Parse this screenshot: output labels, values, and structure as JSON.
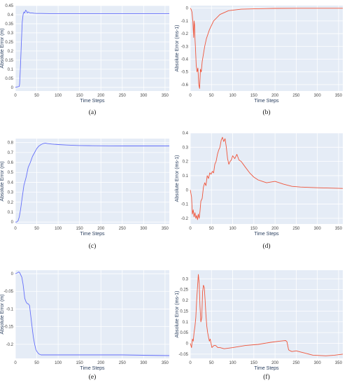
{
  "colors": {
    "plot_bg": "#e5ecf6",
    "grid": "#ffffff",
    "blue": "#636efa",
    "red": "#ef553b",
    "text": "#2a3f5f"
  },
  "chart_data": [
    {
      "type": "line",
      "caption": "(a)",
      "xlabel": "Time Steps",
      "ylabel": "Absolute Error (m)",
      "color": "blue",
      "xlim": [
        0,
        360
      ],
      "ylim": [
        -0.02,
        0.45
      ],
      "xticks": [
        0,
        50,
        100,
        150,
        200,
        250,
        300,
        350
      ],
      "yticks": [
        0,
        0.05,
        0.1,
        0.15,
        0.2,
        0.25,
        0.3,
        0.35,
        0.4,
        0.45
      ],
      "ytick_labels": [
        "0",
        "0.05",
        "0.1",
        "0.15",
        "0.2",
        "0.25",
        "0.3",
        "0.35",
        "0.4",
        "0.45"
      ],
      "series": [
        {
          "x": [
            0,
            3,
            6,
            9,
            10,
            12,
            14,
            16,
            18,
            20,
            22,
            24,
            26,
            28,
            30,
            34,
            38,
            44,
            50,
            60,
            80,
            100,
            150,
            200,
            250,
            300,
            360
          ],
          "y": [
            0.0,
            0.002,
            0.003,
            0.005,
            0.02,
            0.12,
            0.25,
            0.36,
            0.4,
            0.415,
            0.41,
            0.425,
            0.42,
            0.41,
            0.415,
            0.41,
            0.41,
            0.408,
            0.407,
            0.407,
            0.406,
            0.406,
            0.406,
            0.406,
            0.406,
            0.406,
            0.406
          ]
        }
      ]
    },
    {
      "type": "line",
      "caption": "(b)",
      "xlabel": "Time Steps",
      "ylabel": "Absolute Error (ms-1)",
      "color": "red",
      "xlim": [
        0,
        360
      ],
      "ylim": [
        -0.65,
        0.02
      ],
      "xticks": [
        0,
        50,
        100,
        150,
        200,
        250,
        300,
        350
      ],
      "yticks": [
        0,
        -0.1,
        -0.2,
        -0.3,
        -0.4,
        -0.5,
        -0.6
      ],
      "ytick_labels": [
        "0",
        "-0.1",
        "-0.2",
        "-0.3",
        "-0.4",
        "-0.5",
        "-0.6"
      ],
      "series": [
        {
          "x": [
            0,
            2,
            4,
            6,
            8,
            9,
            10,
            11,
            12,
            14,
            16,
            18,
            20,
            22,
            24,
            26,
            28,
            30,
            34,
            38,
            45,
            55,
            70,
            90,
            120,
            160,
            200,
            260,
            300,
            360
          ],
          "y": [
            0.0,
            -0.01,
            -0.03,
            -0.1,
            -0.23,
            -0.1,
            -0.13,
            -0.24,
            -0.3,
            -0.45,
            -0.5,
            -0.47,
            -0.6,
            -0.63,
            -0.48,
            -0.5,
            -0.42,
            -0.38,
            -0.3,
            -0.24,
            -0.17,
            -0.1,
            -0.05,
            -0.02,
            -0.008,
            -0.004,
            -0.002,
            -0.001,
            -0.001,
            -0.001
          ]
        }
      ]
    },
    {
      "type": "line",
      "caption": "(c)",
      "xlabel": "Time Steps",
      "ylabel": "Absolute Error (m)",
      "color": "blue",
      "xlim": [
        0,
        360
      ],
      "ylim": [
        -0.02,
        0.84
      ],
      "xticks": [
        0,
        50,
        100,
        150,
        200,
        250,
        300,
        350
      ],
      "yticks": [
        0,
        0.1,
        0.2,
        0.3,
        0.4,
        0.5,
        0.6,
        0.7,
        0.8
      ],
      "ytick_labels": [
        "0",
        "0.1",
        "0.2",
        "0.3",
        "0.4",
        "0.5",
        "0.6",
        "0.7",
        "0.8"
      ],
      "series": [
        {
          "x": [
            0,
            3,
            6,
            9,
            12,
            15,
            20,
            25,
            30,
            35,
            40,
            45,
            50,
            55,
            60,
            65,
            70,
            75,
            80,
            85,
            90,
            100,
            120,
            150,
            180,
            220,
            260,
            300,
            360
          ],
          "y": [
            0.0,
            0.0,
            0.01,
            0.05,
            0.12,
            0.22,
            0.37,
            0.45,
            0.55,
            0.6,
            0.66,
            0.7,
            0.74,
            0.765,
            0.78,
            0.79,
            0.795,
            0.79,
            0.788,
            0.785,
            0.783,
            0.78,
            0.775,
            0.77,
            0.768,
            0.767,
            0.766,
            0.766,
            0.766
          ]
        }
      ]
    },
    {
      "type": "line",
      "caption": "(d)",
      "xlabel": "Time Steps",
      "ylabel": "Absolute Error (ms-1)",
      "color": "red",
      "xlim": [
        0,
        360
      ],
      "ylim": [
        -0.24,
        0.4
      ],
      "xticks": [
        0,
        50,
        100,
        150,
        200,
        250,
        300,
        350
      ],
      "yticks": [
        -0.2,
        -0.1,
        0,
        0.1,
        0.2,
        0.3,
        0.4
      ],
      "ytick_labels": [
        "-0.2",
        "-0.1",
        "0",
        "0.1",
        "0.2",
        "0.3",
        "0.4"
      ],
      "series": [
        {
          "x": [
            0,
            3,
            5,
            7,
            9,
            11,
            13,
            15,
            17,
            19,
            21,
            23,
            25,
            28,
            31,
            34,
            37,
            40,
            43,
            46,
            49,
            52,
            55,
            58,
            61,
            64,
            67,
            70,
            73,
            76,
            79,
            82,
            85,
            88,
            91,
            94,
            97,
            100,
            105,
            110,
            115,
            120,
            125,
            130,
            140,
            150,
            160,
            170,
            180,
            190,
            200,
            210,
            220,
            240,
            260,
            300,
            360
          ],
          "y": [
            0.0,
            -0.05,
            -0.17,
            -0.14,
            -0.19,
            -0.16,
            -0.2,
            -0.18,
            -0.21,
            -0.17,
            -0.2,
            -0.15,
            -0.08,
            -0.06,
            0.02,
            0.05,
            0.03,
            0.1,
            0.08,
            0.12,
            0.11,
            0.13,
            0.12,
            0.18,
            0.2,
            0.25,
            0.28,
            0.3,
            0.35,
            0.37,
            0.34,
            0.36,
            0.3,
            0.22,
            0.18,
            0.2,
            0.21,
            0.24,
            0.22,
            0.25,
            0.21,
            0.2,
            0.18,
            0.16,
            0.12,
            0.09,
            0.07,
            0.06,
            0.05,
            0.055,
            0.06,
            0.05,
            0.04,
            0.025,
            0.02,
            0.015,
            0.01
          ]
        }
      ]
    },
    {
      "type": "line",
      "caption": "(e)",
      "xlabel": "Time Steps",
      "ylabel": "Absolute Error (m)",
      "color": "blue",
      "xlim": [
        0,
        360
      ],
      "ylim": [
        -0.24,
        0.01
      ],
      "xticks": [
        0,
        50,
        100,
        150,
        200,
        250,
        300,
        350
      ],
      "yticks": [
        0,
        -0.05,
        -0.1,
        -0.15,
        -0.2
      ],
      "ytick_labels": [
        "0",
        "-0.05",
        "-0.1",
        "-0.15",
        "-0.2"
      ],
      "series": [
        {
          "x": [
            0,
            4,
            8,
            10,
            12,
            15,
            18,
            20,
            22,
            25,
            28,
            30,
            33,
            36,
            38,
            40,
            42,
            45,
            48,
            50,
            53,
            56,
            60,
            70,
            100,
            150,
            200,
            250,
            300,
            360
          ],
          "y": [
            0.0,
            0.002,
            0.005,
            0.003,
            -0.002,
            -0.01,
            -0.03,
            -0.05,
            -0.07,
            -0.08,
            -0.085,
            -0.085,
            -0.09,
            -0.12,
            -0.14,
            -0.16,
            -0.18,
            -0.2,
            -0.215,
            -0.22,
            -0.225,
            -0.228,
            -0.23,
            -0.23,
            -0.23,
            -0.23,
            -0.23,
            -0.23,
            -0.231,
            -0.232
          ]
        }
      ]
    },
    {
      "type": "line",
      "caption": "(f)",
      "xlabel": "Time Steps",
      "ylabel": "Absolute Error (ms-1)",
      "color": "red",
      "xlim": [
        0,
        360
      ],
      "ylim": [
        -0.07,
        0.34
      ],
      "xticks": [
        0,
        50,
        100,
        150,
        200,
        250,
        300,
        350
      ],
      "yticks": [
        -0.05,
        0,
        0.05,
        0.1,
        0.15,
        0.2,
        0.25,
        0.3
      ],
      "ytick_labels": [
        "-0.05",
        "0",
        "0.05",
        "0.1",
        "0.15",
        "0.2",
        "0.25",
        "0.3"
      ],
      "series": [
        {
          "x": [
            0,
            3,
            5,
            7,
            9,
            11,
            13,
            15,
            17,
            19,
            21,
            23,
            25,
            27,
            29,
            31,
            33,
            35,
            37,
            39,
            41,
            43,
            45,
            47,
            49,
            51,
            53,
            56,
            60,
            65,
            70,
            80,
            100,
            130,
            160,
            190,
            210,
            220,
            225,
            228,
            230,
            232,
            236,
            240,
            250,
            260,
            270,
            280,
            290,
            300,
            320,
            340,
            360
          ],
          "y": [
            0.0,
            -0.02,
            0.02,
            0.01,
            0.05,
            0.08,
            0.12,
            0.2,
            0.26,
            0.32,
            0.28,
            0.17,
            0.1,
            0.12,
            0.24,
            0.27,
            0.26,
            0.2,
            0.13,
            0.08,
            0.05,
            0.03,
            0.01,
            0.02,
            0.0,
            -0.02,
            -0.015,
            -0.01,
            -0.01,
            -0.02,
            -0.02,
            -0.025,
            -0.02,
            -0.01,
            -0.005,
            0.005,
            0.01,
            0.012,
            0.013,
            0.008,
            -0.01,
            -0.03,
            -0.035,
            -0.038,
            -0.035,
            -0.04,
            -0.045,
            -0.05,
            -0.055,
            -0.056,
            -0.058,
            -0.055,
            -0.05
          ]
        }
      ]
    }
  ]
}
